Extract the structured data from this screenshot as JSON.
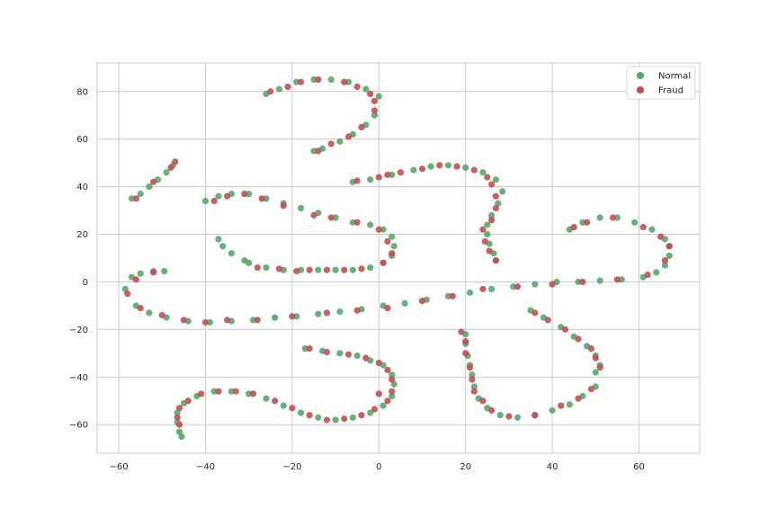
{
  "chart_data": {
    "type": "scatter",
    "title": "",
    "xlabel": "",
    "ylabel": "",
    "xlim": [
      -65,
      74
    ],
    "ylim": [
      -72,
      92
    ],
    "xticks": [
      -60,
      -40,
      -20,
      0,
      20,
      40,
      60
    ],
    "yticks": [
      -60,
      -40,
      -20,
      0,
      20,
      40,
      60,
      80
    ],
    "grid": true,
    "legend_position": "top-right",
    "series": [
      {
        "name": "Normal",
        "color": "#55a868",
        "points": [
          [
            -58.5,
            -3
          ],
          [
            -57,
            2
          ],
          [
            -55,
            3.5
          ],
          [
            -52,
            4.5
          ],
          [
            -49.5,
            4.5
          ],
          [
            -56,
            -10
          ],
          [
            -53,
            -13
          ],
          [
            -49,
            -15
          ],
          [
            -44,
            -16.5
          ],
          [
            -39,
            -17
          ],
          [
            -34,
            -16.5
          ],
          [
            -29,
            -16
          ],
          [
            -24,
            -15
          ],
          [
            -19,
            -14.5
          ],
          [
            -14,
            -13.5
          ],
          [
            -9,
            -12.5
          ],
          [
            -4,
            -11.5
          ],
          [
            1,
            -10
          ],
          [
            6,
            -9
          ],
          [
            11,
            -7.5
          ],
          [
            16,
            -6
          ],
          [
            21,
            -4.5
          ],
          [
            26,
            -3
          ],
          [
            31,
            -2
          ],
          [
            36,
            -1
          ],
          [
            41,
            0
          ],
          [
            46,
            0
          ],
          [
            51,
            0.5
          ],
          [
            56,
            1
          ],
          [
            61,
            2
          ],
          [
            64,
            4
          ],
          [
            66,
            7
          ],
          [
            67,
            11
          ],
          [
            67,
            15
          ],
          [
            66,
            18
          ],
          [
            63,
            22
          ],
          [
            59,
            25
          ],
          [
            55,
            27
          ],
          [
            51,
            27
          ],
          [
            47,
            25
          ],
          [
            44,
            22
          ],
          [
            -57,
            35
          ],
          [
            -55,
            37
          ],
          [
            -53,
            40
          ],
          [
            -51,
            43
          ],
          [
            -49,
            46
          ],
          [
            -47.5,
            49
          ],
          [
            -40,
            34
          ],
          [
            -37,
            36
          ],
          [
            -34,
            37
          ],
          [
            -30,
            37
          ],
          [
            -26,
            35
          ],
          [
            -22,
            33
          ],
          [
            -18,
            31
          ],
          [
            -14,
            29
          ],
          [
            -10,
            27
          ],
          [
            -6,
            25
          ],
          [
            -2,
            24
          ],
          [
            1,
            22
          ],
          [
            3,
            19
          ],
          [
            3.5,
            15
          ],
          [
            3,
            11
          ],
          [
            1,
            8
          ],
          [
            -2,
            6
          ],
          [
            -6,
            5
          ],
          [
            -10,
            5
          ],
          [
            -14,
            5
          ],
          [
            -18,
            5
          ],
          [
            -22,
            5
          ],
          [
            -26,
            6
          ],
          [
            -37,
            18
          ],
          [
            -36,
            15
          ],
          [
            -34,
            12
          ],
          [
            -31,
            9
          ],
          [
            -30,
            8
          ],
          [
            -26,
            79
          ],
          [
            -23,
            81
          ],
          [
            -19,
            84
          ],
          [
            -15,
            85
          ],
          [
            -11,
            85
          ],
          [
            -7,
            84
          ],
          [
            -3,
            81
          ],
          [
            0,
            78
          ],
          [
            -1,
            70
          ],
          [
            -3,
            66
          ],
          [
            -6,
            62
          ],
          [
            -9,
            59
          ],
          [
            -13,
            56
          ],
          [
            -15,
            55
          ],
          [
            -6,
            42
          ],
          [
            -2,
            43
          ],
          [
            3,
            45
          ],
          [
            8,
            47
          ],
          [
            12,
            48.5
          ],
          [
            16,
            49
          ],
          [
            20,
            48
          ],
          [
            24,
            46
          ],
          [
            27,
            43
          ],
          [
            28.5,
            38
          ],
          [
            27.5,
            33
          ],
          [
            26,
            28
          ],
          [
            25,
            24
          ],
          [
            25,
            20
          ],
          [
            25.5,
            16
          ],
          [
            26.5,
            12
          ],
          [
            27,
            9
          ],
          [
            35,
            -12
          ],
          [
            38,
            -15
          ],
          [
            42,
            -19
          ],
          [
            45,
            -23
          ],
          [
            48,
            -27
          ],
          [
            50,
            -31
          ],
          [
            51,
            -35
          ],
          [
            50,
            -38
          ],
          [
            50,
            -44
          ],
          [
            47,
            -48
          ],
          [
            44,
            -51.5
          ],
          [
            40,
            -54
          ],
          [
            36,
            -56
          ],
          [
            32,
            -57
          ],
          [
            28,
            -56
          ],
          [
            25,
            -53
          ],
          [
            23,
            -49
          ],
          [
            22,
            -44
          ],
          [
            21.5,
            -39
          ],
          [
            21,
            -35
          ],
          [
            20.5,
            -31
          ],
          [
            20,
            -26
          ],
          [
            20,
            -22
          ],
          [
            -17,
            -28
          ],
          [
            -13,
            -29
          ],
          [
            -9,
            -30
          ],
          [
            -5,
            -31
          ],
          [
            -2,
            -33
          ],
          [
            1,
            -35
          ],
          [
            3,
            -39
          ],
          [
            3.5,
            -43
          ],
          [
            3,
            -48
          ],
          [
            1,
            -52
          ],
          [
            -2,
            -55
          ],
          [
            -6,
            -57
          ],
          [
            -10,
            -58
          ],
          [
            -14,
            -57
          ],
          [
            -18,
            -55
          ],
          [
            -22,
            -52
          ],
          [
            -26,
            -49
          ],
          [
            -30,
            -47
          ],
          [
            -34,
            -46
          ],
          [
            -38,
            -46
          ],
          [
            -42,
            -48
          ],
          [
            -45,
            -51
          ],
          [
            -46.5,
            -55
          ],
          [
            -46.5,
            -59
          ],
          [
            -46,
            -63
          ],
          [
            -45.5,
            -65
          ]
        ]
      },
      {
        "name": "Fraud",
        "color": "#c44e52",
        "points": [
          [
            -58,
            -5
          ],
          [
            -56,
            1
          ],
          [
            -52,
            4
          ],
          [
            -55,
            -11
          ],
          [
            -50,
            -14
          ],
          [
            -45,
            -16
          ],
          [
            -40,
            -17
          ],
          [
            -35,
            -16
          ],
          [
            -28,
            -16
          ],
          [
            -20,
            -14.5
          ],
          [
            -12,
            -13
          ],
          [
            -5,
            -12
          ],
          [
            2,
            -11
          ],
          [
            10,
            -8
          ],
          [
            17,
            -6
          ],
          [
            24,
            -3
          ],
          [
            32,
            -2
          ],
          [
            40,
            -1
          ],
          [
            47,
            0
          ],
          [
            55,
            1
          ],
          [
            62,
            3
          ],
          [
            66,
            9
          ],
          [
            67,
            15
          ],
          [
            65,
            19
          ],
          [
            61,
            23
          ],
          [
            54,
            27
          ],
          [
            48,
            25
          ],
          [
            45,
            23
          ],
          [
            -56,
            35
          ],
          [
            -52,
            42
          ],
          [
            -48,
            48
          ],
          [
            -47,
            50.5
          ],
          [
            -38,
            34
          ],
          [
            -35,
            36
          ],
          [
            -31,
            37
          ],
          [
            -27,
            35
          ],
          [
            -22,
            32
          ],
          [
            -15,
            28
          ],
          [
            -11,
            27
          ],
          [
            -5,
            25
          ],
          [
            0,
            22
          ],
          [
            2,
            17
          ],
          [
            3,
            12
          ],
          [
            1,
            8
          ],
          [
            -4,
            5.5
          ],
          [
            -8,
            5
          ],
          [
            -12,
            5
          ],
          [
            -16,
            5
          ],
          [
            -19,
            4.5
          ],
          [
            -23,
            5.5
          ],
          [
            -28,
            6
          ],
          [
            -25,
            80
          ],
          [
            -21,
            82
          ],
          [
            -18,
            84
          ],
          [
            -14,
            85
          ],
          [
            -8,
            84
          ],
          [
            -5,
            82
          ],
          [
            -2,
            79
          ],
          [
            -1,
            76
          ],
          [
            -1,
            72
          ],
          [
            -4,
            65
          ],
          [
            -7,
            61
          ],
          [
            -11,
            58
          ],
          [
            -14,
            55
          ],
          [
            -5,
            42.5
          ],
          [
            0,
            44
          ],
          [
            2,
            45
          ],
          [
            5,
            46
          ],
          [
            10,
            47.5
          ],
          [
            14,
            49
          ],
          [
            18,
            48.5
          ],
          [
            22,
            47
          ],
          [
            25,
            44
          ],
          [
            26,
            41
          ],
          [
            27,
            36
          ],
          [
            27,
            31
          ],
          [
            26,
            26
          ],
          [
            24,
            22
          ],
          [
            24.5,
            17
          ],
          [
            25.5,
            13
          ],
          [
            27,
            9
          ],
          [
            36,
            -13
          ],
          [
            39,
            -16
          ],
          [
            43,
            -20
          ],
          [
            46,
            -24
          ],
          [
            49,
            -28
          ],
          [
            50,
            -32
          ],
          [
            51,
            -36
          ],
          [
            49,
            -45
          ],
          [
            46,
            -49
          ],
          [
            42,
            -52
          ],
          [
            36,
            -56
          ],
          [
            30,
            -56.5
          ],
          [
            26,
            -54
          ],
          [
            24,
            -50
          ],
          [
            22,
            -46
          ],
          [
            21.5,
            -41
          ],
          [
            21,
            -36
          ],
          [
            20,
            -30
          ],
          [
            20,
            -25
          ],
          [
            19,
            -21
          ],
          [
            -16,
            -28
          ],
          [
            -12,
            -29.5
          ],
          [
            -7,
            -30.5
          ],
          [
            -3,
            -32
          ],
          [
            0,
            -34
          ],
          [
            2,
            -37
          ],
          [
            3,
            -41
          ],
          [
            3,
            -46
          ],
          [
            2,
            -50
          ],
          [
            -1,
            -53.5
          ],
          [
            -4,
            -56
          ],
          [
            -8,
            -57.5
          ],
          [
            -12,
            -58
          ],
          [
            -16,
            -56
          ],
          [
            -20,
            -53
          ],
          [
            -24,
            -50
          ],
          [
            -29,
            -47
          ],
          [
            -33,
            -46
          ],
          [
            -37,
            -46
          ],
          [
            -41,
            -47
          ],
          [
            -44,
            -50
          ],
          [
            -46,
            -53
          ],
          [
            -46.5,
            -57
          ],
          [
            -46,
            -60
          ],
          [
            0,
            -47
          ]
        ]
      }
    ]
  }
}
